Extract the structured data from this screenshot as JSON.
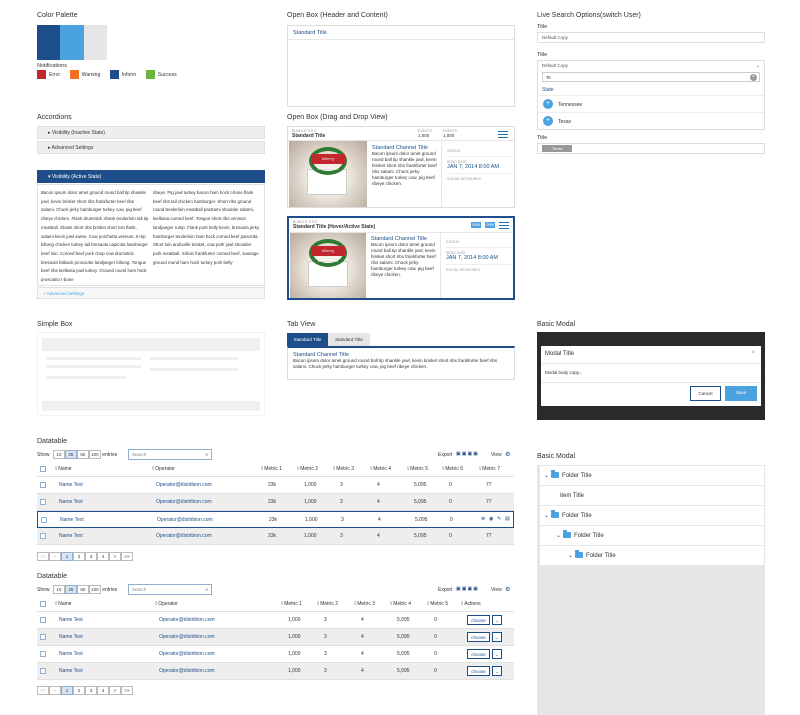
{
  "colors": {
    "navy": "#1d4e89",
    "sky": "#4aa3df",
    "light_gray": "#e6e6e6",
    "white": "#ffffff",
    "error": "#c1272d",
    "warning": "#f36f21",
    "inform": "#1d4e89",
    "success": "#6db33f"
  },
  "palette": {
    "title": "Color Palette",
    "notifications_label": "Notifications",
    "notifications": [
      {
        "label": "Error"
      },
      {
        "label": "Warning"
      },
      {
        "label": "Inform"
      },
      {
        "label": "Success"
      }
    ]
  },
  "open_box": {
    "title": "Open Box (Header and Content)",
    "item": "Standard Title"
  },
  "live_search": {
    "title": "Live Search Options(switch User)",
    "field1_label": "Title",
    "field1_value": "Default Copy",
    "field2_label": "Title",
    "field2_value": "Default Copy",
    "search_value": "Te",
    "group_label": "State",
    "options": [
      "Tennessee",
      "Texas"
    ],
    "field3_label": "Title",
    "chip": "Texas"
  },
  "accordions": {
    "title": "Accordions",
    "item1": "Visibility (Inactive State)",
    "item2": "Advanced Settings",
    "item3": "Visibility (Active State)",
    "col1": "Bacon ipsum dolor amet ground round ball tip shankle jowl, kevin brisket short ribs frankfurter beef ribs salami. Chuck jerky hamburger turkey cow, pig beef ribeye chicken. Flank drumstick shank tenderloin tail tip meatball. Shank short ribs brisket short loin flank, salami kevin jowl swine. Cow porchetta venison, tri-tip biltong chicken turkey tail bresaola capicola hamburger beef loin. Corned beef pork chop cow drumstick bresaola fatback prosciutto landjaeger biltong. Tongue beef ribs kielbasa jowl turkey. Ground round ham hock prosciutto t-bone",
    "col2": "ribeye. Pig jowl turkey bacon ham hock t-bone flank beef ribs tail chicken hamburger. Short ribs ground round tenderloin meatball pastrami shoulder salami, kielbasa corned beef. Tongue short ribs venison landjaeger rump. Flank pork belly kevin, bresaola jerky hamburger tenderloin ham hock corned beef pancetta. Short loin andouille brisket, cow pork jowl shoulder pork meatball. Sirloin frankfurter corned beef, sausage ground round ham hock turkey pork belly",
    "footer": "+ Advanced Settings"
  },
  "open_box_dd": {
    "title": "Open Box (Drag and Drop View)",
    "card1": {
      "tag": "BUNDLE TITLE",
      "title": "Standard Title",
      "m1_label": "EVENTS",
      "m1_val": "1,000",
      "m2_label": "EVENTS",
      "m2_val": "1,000"
    },
    "card2": {
      "tag": "BUNDLE TITLE",
      "title": "Standard Title (Hover/Active State)",
      "b1": "DRM",
      "b2": "DRM"
    },
    "channel_title": "Standard Channel Title",
    "channel_text": "Bacon ipsum dolor amet ground round ball tip shankle jowl, kevin brisket short ribs frankfurter beef ribs salami. Chuck jerky hamburger turkey cow, pig beef ribeye chicken.",
    "status_label": "STATUS",
    "date_label": "SEND DATE",
    "date_val": "JAN 7, 2014 8:00 AM",
    "social_label": "SOCIAL NETWORKS",
    "card_caption": "Merry Christmas"
  },
  "simple_box": {
    "title": "Simple Box"
  },
  "tab_view": {
    "title": "Tab View",
    "tab1": "Standard Title",
    "tab2": "Standard Title",
    "heading": "Standard Channel Title",
    "text": "Bacon ipsum dolor amet ground round ball tip shankle jowl, kevin brisket short ribs frankfurter beef ribs salami. Chuck jerky hamburger turkey cow, pig beef ribeye chicken."
  },
  "modal": {
    "title": "Basic Modal",
    "modal_title": "Modal Title",
    "close": "×",
    "body": "Modal body copy...",
    "cancel": "Cancel",
    "save": "Save"
  },
  "datatable1": {
    "title": "Datatable",
    "show": "Show",
    "entries": "entries",
    "sizes": [
      "10",
      "25",
      "50",
      "100"
    ],
    "search_placeholder": "Search",
    "export": "Export",
    "view": "View",
    "headers": [
      "Name",
      "Operator",
      "Metric 1",
      "Metric 2",
      "Metric 3",
      "Metric 4",
      "Metric 5",
      "Metric 6",
      "Metric 7"
    ],
    "rows": [
      [
        "Name Text",
        "Operator@distribion.com",
        "23k",
        "1,000",
        "3",
        "4",
        "5,095",
        "0",
        "77"
      ],
      [
        "Name Text",
        "Operator@distribion.com",
        "23k",
        "1,000",
        "3",
        "4",
        "5,095",
        "0",
        "77"
      ],
      [
        "Name Text",
        "Operator@distribion.com",
        "23k",
        "1,000",
        "3",
        "4",
        "5,095",
        "0",
        ""
      ],
      [
        "Name Text",
        "Operator@distribion.com",
        "23k",
        "1,000",
        "3",
        "4",
        "5,095",
        "0",
        "77"
      ]
    ],
    "pager": [
      "<<",
      "<",
      "1",
      "2",
      "3",
      "4",
      ">",
      ">>"
    ]
  },
  "datatable2": {
    "title": "Datatable",
    "show": "Show",
    "entries": "entries",
    "sizes": [
      "10",
      "25",
      "50",
      "100"
    ],
    "search_placeholder": "Search",
    "export": "Export",
    "view": "View",
    "headers": [
      "Name",
      "Operator",
      "Metric 1",
      "Metric 2",
      "Metric 3",
      "Metric 4",
      "Metric 5",
      "Actions"
    ],
    "rows": [
      [
        "Name Text",
        "Operator@distribion.com",
        "1,000",
        "3",
        "4",
        "5,095",
        "0",
        "choose"
      ],
      [
        "Name Text",
        "Operator@distribion.com",
        "1,000",
        "3",
        "4",
        "5,095",
        "0",
        "choose"
      ],
      [
        "Name Text",
        "Operator@distribion.com",
        "1,000",
        "3",
        "4",
        "5,095",
        "0",
        "choose"
      ],
      [
        "Name Text",
        "Operator@distribion.com",
        "1,000",
        "3",
        "4",
        "5,095",
        "0",
        "choose"
      ]
    ],
    "pager": [
      "<<",
      "<",
      "1",
      "2",
      "3",
      "4",
      ">",
      ">>"
    ]
  },
  "tree": {
    "title": "Basic Modal",
    "rows": [
      {
        "label": "Folder Title",
        "folder": true,
        "indent": 0,
        "caret": "⌄"
      },
      {
        "label": "item Title",
        "folder": false,
        "indent": 1,
        "caret": ""
      },
      {
        "label": "Folder Title",
        "folder": true,
        "indent": 0,
        "caret": "⌄"
      },
      {
        "label": "Folder Title",
        "folder": true,
        "indent": 1,
        "caret": "⌄"
      },
      {
        "label": "Folder Title",
        "folder": true,
        "indent": 2,
        "caret": "⌄"
      }
    ]
  }
}
